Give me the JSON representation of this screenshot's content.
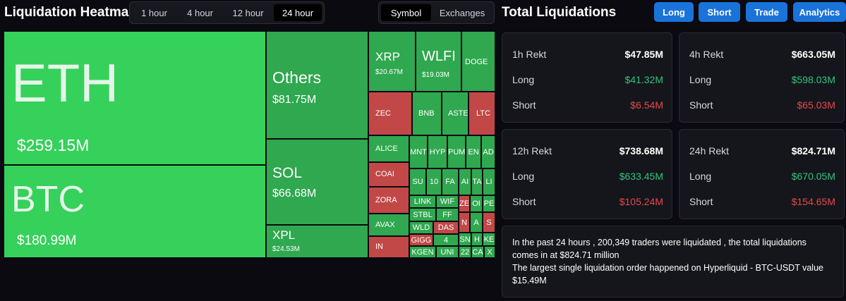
{
  "heatmap": {
    "title": "Liquidation Heatmap",
    "time_tabs": [
      {
        "label": "1 hour"
      },
      {
        "label": "4 hour"
      },
      {
        "label": "12 hour"
      },
      {
        "label": "24 hour"
      }
    ],
    "mode_tabs": [
      {
        "label": "Symbol"
      },
      {
        "label": "Exchanges"
      }
    ],
    "cells": {
      "eth": {
        "name": "ETH",
        "value": "$259.15M"
      },
      "btc": {
        "name": "BTC",
        "value": "$180.99M"
      },
      "others": {
        "name": "Others",
        "value": "$81.75M"
      },
      "sol": {
        "name": "SOL",
        "value": "$66.68M"
      },
      "xpl": {
        "name": "XPL",
        "value": "$24.53M"
      },
      "xrp": {
        "name": "XRP",
        "value": "$20.67M"
      },
      "wlfi": {
        "name": "WLFI",
        "value": "$19.03M"
      },
      "doge": {
        "name": "DOGE"
      },
      "zec": {
        "name": "ZEC"
      },
      "bnb": {
        "name": "BNB"
      },
      "aster": {
        "name": "ASTER"
      },
      "ltc": {
        "name": "LTC"
      },
      "alice": {
        "name": "ALICE"
      },
      "coai": {
        "name": "COAI"
      },
      "zora": {
        "name": "ZORA"
      },
      "avax": {
        "name": "AVAX"
      },
      "in": {
        "name": "IN"
      },
      "small": [
        {
          "name": "MNT"
        },
        {
          "name": "HYP"
        },
        {
          "name": "PUM"
        },
        {
          "name": "EN"
        },
        {
          "name": "AD"
        },
        {
          "name": "SU"
        },
        {
          "name": "10"
        },
        {
          "name": "FA"
        },
        {
          "name": "AI"
        },
        {
          "name": "TA"
        },
        {
          "name": "LI"
        },
        {
          "name": "LINK"
        },
        {
          "name": "WIF"
        },
        {
          "name": "STBL"
        },
        {
          "name": "FF"
        },
        {
          "name": "ZE"
        },
        {
          "name": "OI"
        },
        {
          "name": "PE"
        },
        {
          "name": "WLD"
        },
        {
          "name": "DAS"
        },
        {
          "name": "N"
        },
        {
          "name": "A"
        },
        {
          "name": "S"
        },
        {
          "name": "GIGG"
        },
        {
          "name": "4"
        },
        {
          "name": "SN"
        },
        {
          "name": "H"
        },
        {
          "name": "KE"
        },
        {
          "name": "KGEN"
        },
        {
          "name": "UNI"
        },
        {
          "name": "22"
        },
        {
          "name": "CA"
        },
        {
          "name": "X"
        }
      ]
    }
  },
  "total": {
    "title": "Total Liquidations",
    "buttons": [
      {
        "label": "Long"
      },
      {
        "label": "Short"
      },
      {
        "label": "Trade"
      },
      {
        "label": "Analytics"
      }
    ],
    "cards": [
      {
        "title": "1h Rekt",
        "total": "$47.85M",
        "long_label": "Long",
        "long": "$41.32M",
        "short_label": "Short",
        "short": "$6.54M"
      },
      {
        "title": "4h Rekt",
        "total": "$663.05M",
        "long_label": "Long",
        "long": "$598.03M",
        "short_label": "Short",
        "short": "$65.03M"
      },
      {
        "title": "12h Rekt",
        "total": "$738.68M",
        "long_label": "Long",
        "long": "$633.45M",
        "short_label": "Short",
        "short": "$105.24M"
      },
      {
        "title": "24h Rekt",
        "total": "$824.71M",
        "long_label": "Long",
        "long": "$670.05M",
        "short_label": "Short",
        "short": "$154.65M"
      }
    ],
    "summary_line1": "In the past 24 hours , 200,349 traders were liquidated , the total liquidations comes in at $824.71 million",
    "summary_line2": "The largest single liquidation order happened on Hyperliquid - BTC-USDT value $15.49M"
  }
}
